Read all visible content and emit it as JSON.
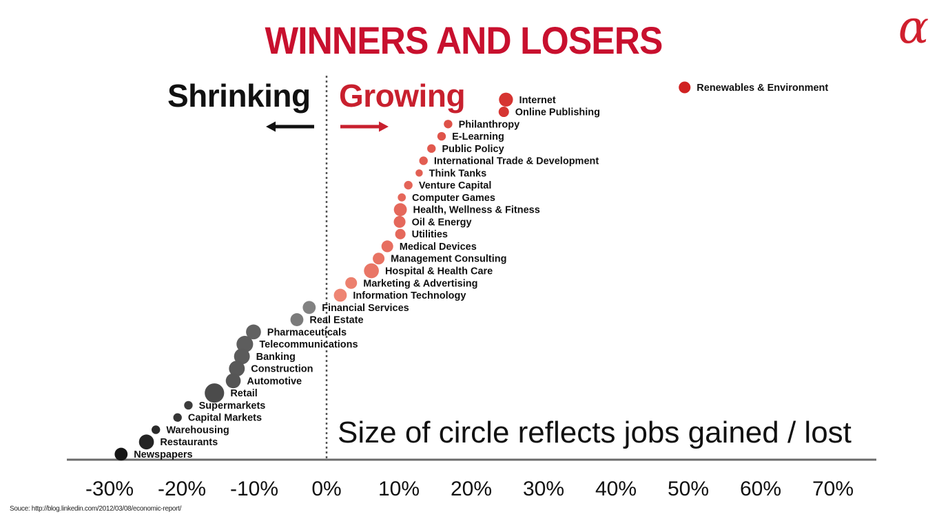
{
  "slide": {
    "title": "WINNERS AND LOSERS",
    "logo_glyph": "α",
    "shrinking_label": "Shrinking",
    "growing_label": "Growing",
    "note": "Size of circle reflects jobs gained / lost",
    "source": "Souce: http://blog.linkedin.com/2012/03/08/economic-report/"
  },
  "colors": {
    "title": "#c8102e",
    "growing_arrow": "#c8202e",
    "shrinking_arrow": "#111111"
  },
  "chart_data": {
    "type": "scatter",
    "xlabel": "",
    "ylabel": "",
    "x_unit": "%",
    "xlim": [
      -36,
      76
    ],
    "x_ticks": [
      -30,
      -20,
      -10,
      0,
      10,
      20,
      30,
      40,
      50,
      60,
      70
    ],
    "x_tick_labels": [
      "-30%",
      "-20%",
      "-10%",
      "0%",
      "10%",
      "20%",
      "30%",
      "40%",
      "50%",
      "60%",
      "70%"
    ],
    "grid": false,
    "y_encoding": "rank (industries sorted by growth)",
    "reference_line_x": 0,
    "size_encoding": "Size of circle reflects jobs gained / lost",
    "points": [
      {
        "label": "Renewables & Environment",
        "x": 49.5,
        "size": 3
      },
      {
        "label": "Internet",
        "x": 24.8,
        "size": 5
      },
      {
        "label": "Online Publishing",
        "x": 24.5,
        "size": 2
      },
      {
        "label": "Philanthropy",
        "x": 16.8,
        "size": 1
      },
      {
        "label": "E-Learning",
        "x": 15.9,
        "size": 1
      },
      {
        "label": "Public Policy",
        "x": 14.5,
        "size": 1
      },
      {
        "label": "International Trade & Development",
        "x": 13.4,
        "size": 1
      },
      {
        "label": "Think Tanks",
        "x": 12.8,
        "size": 0.5
      },
      {
        "label": "Venture Capital",
        "x": 11.3,
        "size": 1
      },
      {
        "label": "Computer Games",
        "x": 10.4,
        "size": 0.8
      },
      {
        "label": "Health, Wellness & Fitness",
        "x": 10.2,
        "size": 4
      },
      {
        "label": "Oil & Energy",
        "x": 10.1,
        "size": 3
      },
      {
        "label": "Utilities",
        "x": 10.2,
        "size": 2
      },
      {
        "label": "Medical Devices",
        "x": 8.4,
        "size": 3
      },
      {
        "label": "Management Consulting",
        "x": 7.2,
        "size": 3
      },
      {
        "label": "Hospital & Health Care",
        "x": 6.2,
        "size": 6
      },
      {
        "label": "Marketing & Advertising",
        "x": 3.4,
        "size": 3
      },
      {
        "label": "Information Technology",
        "x": 1.9,
        "size": 4
      },
      {
        "label": "Financial Services",
        "x": -2.4,
        "size": 4
      },
      {
        "label": "Real Estate",
        "x": -4.1,
        "size": 4
      },
      {
        "label": "Pharmaceuticals",
        "x": -10.1,
        "size": 6
      },
      {
        "label": "Telecommunications",
        "x": -11.3,
        "size": 8
      },
      {
        "label": "Banking",
        "x": -11.7,
        "size": 7
      },
      {
        "label": "Construction",
        "x": -12.4,
        "size": 7
      },
      {
        "label": "Automotive",
        "x": -12.9,
        "size": 6
      },
      {
        "label": "Retail",
        "x": -15.5,
        "size": 12
      },
      {
        "label": "Supermarkets",
        "x": -19.1,
        "size": 1
      },
      {
        "label": "Capital Markets",
        "x": -20.6,
        "size": 1
      },
      {
        "label": "Warehousing",
        "x": -23.6,
        "size": 1
      },
      {
        "label": "Restaurants",
        "x": -24.9,
        "size": 6
      },
      {
        "label": "Newspapers",
        "x": -28.4,
        "size": 4
      }
    ]
  }
}
